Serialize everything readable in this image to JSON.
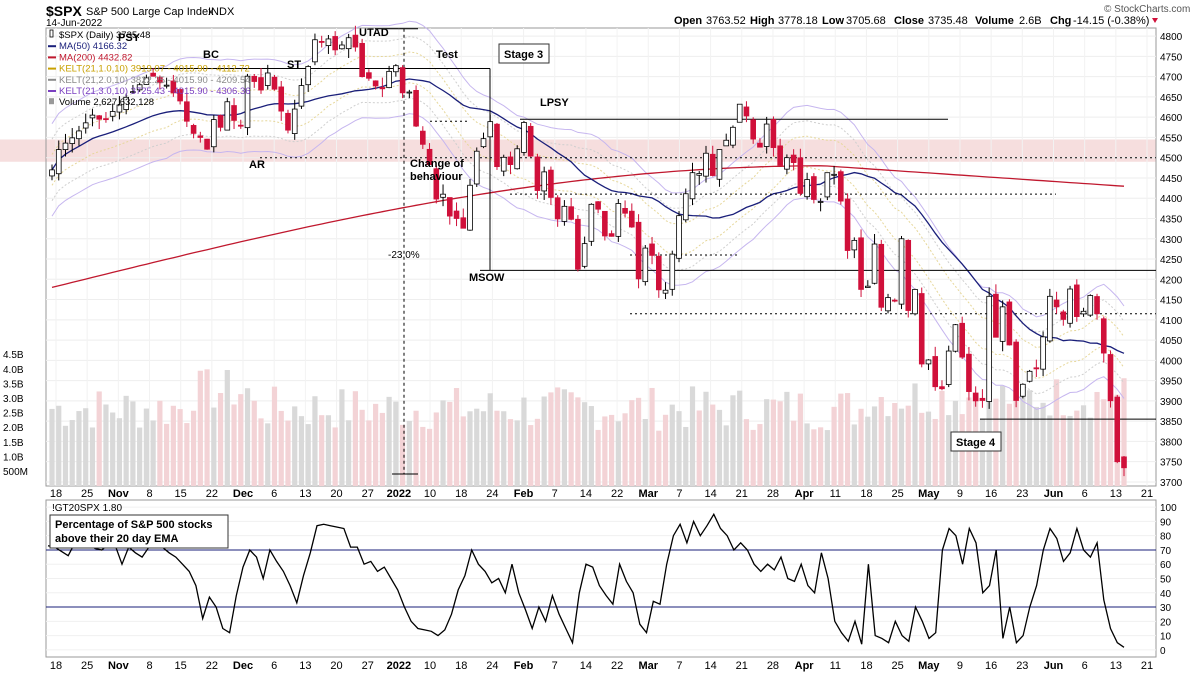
{
  "header": {
    "symbol": "$SPX",
    "name": "S&P 500 Large Cap Index",
    "exchange": "INDX",
    "date": "14-Jun-2022",
    "ohlc": {
      "open_label": "Open",
      "open": "3763.52",
      "high_label": "High",
      "high": "3778.18",
      "low_label": "Low",
      "low": "3705.68",
      "close_label": "Close",
      "close": "3735.48",
      "volume_label": "Volume",
      "volume": "2.6B",
      "chg_label": "Chg",
      "chg": "-14.15 (-0.38%)"
    },
    "credit": "© StockCharts.com"
  },
  "legend": [
    {
      "text": "$SPX (Daily) 3735.48",
      "color": "#000000",
      "marker": "candle"
    },
    {
      "text": "MA(50) 4166.32",
      "color": "#1a1f7a",
      "marker": "line"
    },
    {
      "text": "MA(200) 4432.82",
      "color": "#c0182e",
      "marker": "line"
    },
    {
      "text": "KELT(21,1.0,10) 3919.07 - 4015.90 - 4112.72",
      "color": "#c8a000",
      "marker": "line"
    },
    {
      "text": "KELT(21,2.0,10) 3822.25 - 4015.90 - 4209.54",
      "color": "#8a8a8a",
      "marker": "line"
    },
    {
      "text": "KELT(21,3.0,10) 3725.43 - 4015.90 - 4306.36",
      "color": "#7a3fc0",
      "marker": "line"
    },
    {
      "text": "Volume 2,627,632,128",
      "color": "#000000",
      "marker": "volume"
    }
  ],
  "annotations": {
    "psy": "PSY",
    "bc": "BC",
    "st": "ST",
    "ar": "AR",
    "utad": "UTAD",
    "test": "Test",
    "stage3": "Stage 3",
    "lpsy": "LPSY",
    "change1": "Change of",
    "change2": "behaviour",
    "drawdown": "-23.0%",
    "msow": "MSOW",
    "stage4": "Stage 4"
  },
  "lower_panel": {
    "legend": "!GT20SPX 1.80",
    "title_line1": "Percentage of S&P 500 stocks",
    "title_line2": "above their 20 day EMA"
  },
  "colors": {
    "up": "#ffffff",
    "down": "#d0103a",
    "ma50": "#1a1f7a",
    "ma200": "#c0182e",
    "kelt3": "#b59ee8",
    "vol_up": "#d9d9d9",
    "vol_down": "#f3d3d6",
    "resistance_band": "#f6dede"
  },
  "chart_data": [
    {
      "type": "candlestick",
      "title": "$SPX (Daily) 3735.48",
      "x_tick_labels": [
        "18",
        "25",
        "Nov",
        "8",
        "15",
        "22",
        "Dec",
        "6",
        "13",
        "20",
        "27",
        "2022",
        "10",
        "18",
        "24",
        "Feb",
        "7",
        "14",
        "22",
        "Mar",
        "7",
        "14",
        "21",
        "28",
        "Apr",
        "11",
        "18",
        "25",
        "May",
        "9",
        "16",
        "23",
        "Jun",
        "6",
        "13",
        "21"
      ],
      "y_ticks": [
        3700,
        3750,
        3800,
        3850,
        3900,
        3950,
        4000,
        4050,
        4100,
        4150,
        4200,
        4250,
        4300,
        4350,
        4400,
        4450,
        4500,
        4550,
        4600,
        4650,
        4700,
        4750,
        4800
      ],
      "ylim": [
        3690,
        4820
      ],
      "volume_ticks": [
        "500M",
        "1.0B",
        "1.5B",
        "2.0B",
        "2.5B",
        "3.0B",
        "3.5B",
        "4.0B",
        "4.5B"
      ],
      "close": [
        4470,
        4520,
        4536,
        4549,
        4566,
        4586,
        4605,
        4595,
        4596,
        4614,
        4630,
        4649,
        4663,
        4680,
        4697,
        4701,
        4685,
        4679,
        4660,
        4640,
        4590,
        4560,
        4550,
        4521,
        4594,
        4575,
        4638,
        4592,
        4578,
        4701,
        4688,
        4667,
        4709,
        4669,
        4615,
        4568,
        4620,
        4678,
        4725,
        4791,
        4786,
        4793,
        4766,
        4778,
        4796,
        4773,
        4700,
        4696,
        4677,
        4670,
        4713,
        4727,
        4660,
        4662,
        4578,
        4533,
        4483,
        4398,
        4410,
        4356,
        4350,
        4326,
        4432,
        4516,
        4547,
        4589,
        4478,
        4501,
        4483,
        4522,
        4587,
        4504,
        4419,
        4465,
        4402,
        4349,
        4380,
        4348,
        4225,
        4288,
        4385,
        4373,
        4307,
        4306,
        4387,
        4363,
        4329,
        4201,
        4277,
        4259,
        4174,
        4173,
        4262,
        4357,
        4411,
        4463,
        4461,
        4511,
        4456,
        4520,
        4543,
        4575,
        4632,
        4603,
        4546,
        4526,
        4583,
        4525,
        4481,
        4500,
        4488,
        4412,
        4446,
        4397,
        4392,
        4463,
        4459,
        4393,
        4271,
        4296,
        4175,
        4183,
        4287,
        4131,
        4155,
        4147,
        4300,
        4123,
        4175,
        3991,
        4001,
        3935,
        3930,
        4023,
        4088,
        4008,
        3923,
        3900,
        3901,
        4158,
        4057,
        4132,
        4038,
        3901,
        3941,
        3973,
        3979,
        4058,
        4158,
        4132,
        4101,
        4176,
        4108,
        4121,
        4160,
        4115,
        4018,
        3900,
        3750,
        3735
      ],
      "ma50_end": 4166.32,
      "ma200_end": 4432.82,
      "kelt_mid": 4015.9,
      "levels": {
        "psy_high": 4720,
        "utad_peak": 4818,
        "lpsy": 4595,
        "resistance_band": [
          4490,
          4545
        ],
        "dotted_4500": 4500,
        "dotted_4410": 4410,
        "dotted_4260": 4260,
        "msow": 4222,
        "dotted_4115": 4115,
        "stage4_low": 3855
      }
    },
    {
      "type": "line",
      "title": "!GT20SPX 1.80",
      "y_ticks": [
        0,
        10,
        20,
        30,
        40,
        50,
        60,
        70,
        80,
        90,
        100
      ],
      "ylim": [
        -5,
        105
      ],
      "reference_lines": [
        30,
        70
      ],
      "values": [
        73,
        72,
        69,
        66,
        75,
        75,
        74,
        71,
        70,
        74,
        73,
        60,
        72,
        68,
        65,
        72,
        74,
        72,
        68,
        65,
        60,
        55,
        45,
        22,
        37,
        30,
        15,
        12,
        38,
        58,
        70,
        65,
        50,
        70,
        62,
        55,
        45,
        33,
        52,
        68,
        87,
        88,
        87,
        86,
        85,
        72,
        72,
        60,
        62,
        55,
        58,
        50,
        42,
        30,
        20,
        15,
        14,
        13,
        10,
        14,
        25,
        42,
        52,
        70,
        60,
        55,
        47,
        50,
        40,
        60,
        40,
        28,
        15,
        30,
        20,
        38,
        25,
        15,
        5,
        40,
        60,
        58,
        45,
        38,
        32,
        60,
        48,
        40,
        18,
        12,
        34,
        32,
        60,
        80,
        88,
        75,
        90,
        80,
        87,
        95,
        85,
        80,
        70,
        75,
        70,
        60,
        55,
        60,
        56,
        65,
        50,
        48,
        60,
        45,
        40,
        68,
        50,
        20,
        12,
        6,
        20,
        4,
        60,
        10,
        8,
        5,
        20,
        10,
        6,
        30,
        20,
        8,
        12,
        70,
        85,
        80,
        60,
        85,
        75,
        40,
        45,
        70,
        8,
        30,
        5,
        10,
        30,
        45,
        70,
        85,
        78,
        62,
        68,
        85,
        70,
        65,
        75,
        35,
        15,
        5,
        1.8
      ]
    }
  ]
}
